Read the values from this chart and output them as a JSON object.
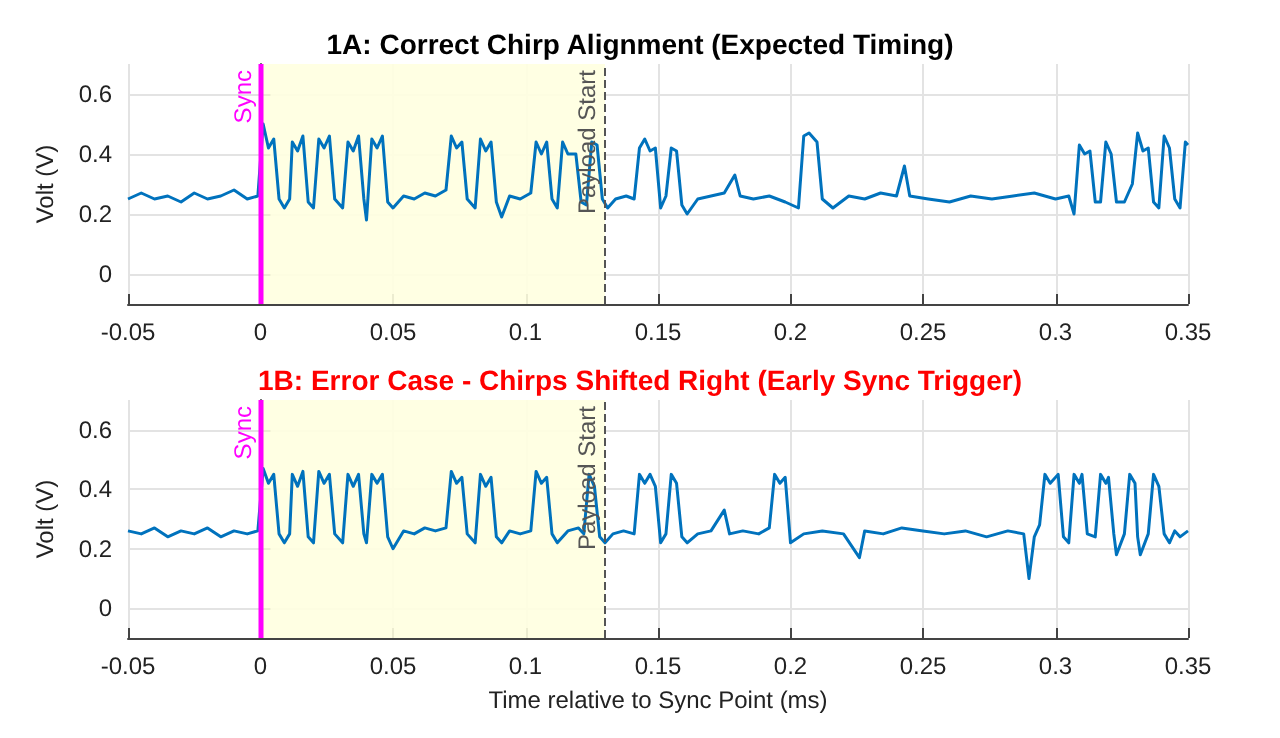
{
  "chart_data": [
    {
      "type": "line",
      "title": "1A: Correct Chirp Alignment (Expected Timing)",
      "ylabel": "Volt (V)",
      "x": [
        -0.05,
        -0.045,
        -0.04,
        -0.035,
        -0.03,
        -0.025,
        -0.02,
        -0.015,
        -0.01,
        -0.005,
        -0.001,
        0.001,
        0.003,
        0.005,
        0.007,
        0.009,
        0.011,
        0.012,
        0.014,
        0.016,
        0.018,
        0.02,
        0.022,
        0.024,
        0.026,
        0.028,
        0.031,
        0.033,
        0.035,
        0.037,
        0.039,
        0.04,
        0.042,
        0.044,
        0.046,
        0.048,
        0.05,
        0.054,
        0.058,
        0.062,
        0.066,
        0.07,
        0.072,
        0.074,
        0.076,
        0.078,
        0.081,
        0.083,
        0.085,
        0.087,
        0.089,
        0.091,
        0.094,
        0.098,
        0.102,
        0.104,
        0.106,
        0.108,
        0.11,
        0.112,
        0.114,
        0.116,
        0.119,
        0.121,
        0.123,
        0.125,
        0.127,
        0.129,
        0.131,
        0.134,
        0.138,
        0.141,
        0.143,
        0.145,
        0.147,
        0.149,
        0.151,
        0.153,
        0.155,
        0.157,
        0.159,
        0.161,
        0.165,
        0.17,
        0.175,
        0.179,
        0.181,
        0.186,
        0.192,
        0.198,
        0.203,
        0.205,
        0.207,
        0.21,
        0.212,
        0.216,
        0.222,
        0.228,
        0.234,
        0.24,
        0.243,
        0.245,
        0.252,
        0.26,
        0.268,
        0.276,
        0.284,
        0.292,
        0.3,
        0.305,
        0.307,
        0.309,
        0.311,
        0.313,
        0.315,
        0.317,
        0.319,
        0.321,
        0.323,
        0.326,
        0.329,
        0.331,
        0.333,
        0.335,
        0.337,
        0.339,
        0.341,
        0.343,
        0.345,
        0.347,
        0.349,
        0.35
      ],
      "series": [
        {
          "color": "#0072bd",
          "values": [
            0.25,
            0.27,
            0.25,
            0.26,
            0.24,
            0.27,
            0.25,
            0.26,
            0.28,
            0.25,
            0.26,
            0.5,
            0.42,
            0.45,
            0.25,
            0.22,
            0.25,
            0.44,
            0.41,
            0.46,
            0.24,
            0.22,
            0.45,
            0.42,
            0.46,
            0.25,
            0.22,
            0.44,
            0.41,
            0.46,
            0.25,
            0.18,
            0.45,
            0.42,
            0.46,
            0.24,
            0.22,
            0.26,
            0.25,
            0.27,
            0.26,
            0.28,
            0.46,
            0.42,
            0.44,
            0.25,
            0.22,
            0.45,
            0.41,
            0.44,
            0.24,
            0.19,
            0.26,
            0.25,
            0.27,
            0.44,
            0.4,
            0.44,
            0.25,
            0.22,
            0.44,
            0.4,
            0.4,
            0.24,
            0.23,
            0.44,
            0.43,
            0.25,
            0.22,
            0.25,
            0.26,
            0.25,
            0.42,
            0.45,
            0.41,
            0.42,
            0.22,
            0.26,
            0.42,
            0.41,
            0.23,
            0.2,
            0.25,
            0.26,
            0.27,
            0.33,
            0.26,
            0.25,
            0.26,
            0.24,
            0.22,
            0.46,
            0.47,
            0.44,
            0.25,
            0.22,
            0.26,
            0.25,
            0.27,
            0.26,
            0.36,
            0.26,
            0.25,
            0.24,
            0.26,
            0.25,
            0.26,
            0.27,
            0.25,
            0.26,
            0.2,
            0.43,
            0.4,
            0.41,
            0.24,
            0.24,
            0.44,
            0.4,
            0.24,
            0.24,
            0.3,
            0.47,
            0.41,
            0.42,
            0.24,
            0.22,
            0.46,
            0.42,
            0.25,
            0.22,
            0.44,
            0.43
          ]
        }
      ],
      "xlim": [
        -0.05,
        0.35
      ],
      "xticks": [
        -0.05,
        0,
        0.05,
        0.1,
        0.15,
        0.2,
        0.25,
        0.3,
        0.35
      ],
      "ylim": [
        -0.1,
        0.7
      ],
      "yticks": [
        0,
        0.2,
        0.4,
        0.6
      ],
      "grid": true,
      "ref_lines": [
        {
          "axis": "x",
          "value": 0,
          "label": "Sync",
          "color": "#ff00ff",
          "line_style": "solid"
        },
        {
          "axis": "x",
          "value": 0.13,
          "label": "Payload Start",
          "color": "#555555",
          "line_style": "dashed"
        }
      ],
      "bands": [
        {
          "axis": "x",
          "from": 0,
          "to": 0.13,
          "color": "#ffffe0"
        }
      ]
    },
    {
      "type": "line",
      "title": "1B: Error Case - Chirps Shifted Right (Early Sync Trigger)",
      "xlabel": "Time relative to Sync Point (ms)",
      "ylabel": "Volt (V)",
      "x": [
        -0.05,
        -0.045,
        -0.04,
        -0.035,
        -0.03,
        -0.025,
        -0.02,
        -0.015,
        -0.01,
        -0.005,
        -0.001,
        0.001,
        0.003,
        0.005,
        0.007,
        0.009,
        0.011,
        0.012,
        0.014,
        0.016,
        0.018,
        0.02,
        0.022,
        0.024,
        0.026,
        0.028,
        0.031,
        0.033,
        0.035,
        0.037,
        0.039,
        0.04,
        0.042,
        0.044,
        0.046,
        0.048,
        0.05,
        0.054,
        0.058,
        0.062,
        0.066,
        0.07,
        0.072,
        0.074,
        0.076,
        0.078,
        0.081,
        0.083,
        0.085,
        0.087,
        0.089,
        0.091,
        0.094,
        0.098,
        0.102,
        0.104,
        0.106,
        0.108,
        0.11,
        0.112,
        0.116,
        0.12,
        0.122,
        0.124,
        0.126,
        0.128,
        0.13,
        0.133,
        0.137,
        0.141,
        0.143,
        0.145,
        0.147,
        0.149,
        0.151,
        0.153,
        0.155,
        0.157,
        0.159,
        0.161,
        0.165,
        0.17,
        0.175,
        0.177,
        0.182,
        0.188,
        0.192,
        0.194,
        0.196,
        0.198,
        0.2,
        0.205,
        0.212,
        0.22,
        0.226,
        0.228,
        0.235,
        0.242,
        0.25,
        0.258,
        0.266,
        0.274,
        0.282,
        0.288,
        0.29,
        0.292,
        0.294,
        0.296,
        0.298,
        0.301,
        0.303,
        0.305,
        0.307,
        0.309,
        0.31,
        0.312,
        0.315,
        0.317,
        0.319,
        0.32,
        0.322,
        0.323,
        0.326,
        0.328,
        0.33,
        0.331,
        0.332,
        0.335,
        0.337,
        0.339,
        0.341,
        0.343,
        0.345,
        0.347,
        0.35
      ],
      "series": [
        {
          "color": "#0072bd",
          "values": [
            0.26,
            0.25,
            0.27,
            0.24,
            0.26,
            0.25,
            0.27,
            0.24,
            0.26,
            0.25,
            0.26,
            0.47,
            0.42,
            0.45,
            0.25,
            0.22,
            0.25,
            0.45,
            0.41,
            0.46,
            0.24,
            0.22,
            0.46,
            0.42,
            0.45,
            0.25,
            0.22,
            0.45,
            0.41,
            0.45,
            0.25,
            0.22,
            0.45,
            0.42,
            0.45,
            0.24,
            0.2,
            0.26,
            0.25,
            0.27,
            0.26,
            0.27,
            0.46,
            0.42,
            0.44,
            0.25,
            0.22,
            0.45,
            0.41,
            0.44,
            0.24,
            0.22,
            0.26,
            0.25,
            0.26,
            0.46,
            0.42,
            0.44,
            0.25,
            0.22,
            0.26,
            0.27,
            0.25,
            0.45,
            0.41,
            0.24,
            0.22,
            0.25,
            0.26,
            0.25,
            0.45,
            0.42,
            0.45,
            0.41,
            0.22,
            0.25,
            0.45,
            0.42,
            0.24,
            0.22,
            0.25,
            0.26,
            0.33,
            0.25,
            0.26,
            0.25,
            0.27,
            0.45,
            0.42,
            0.44,
            0.22,
            0.25,
            0.26,
            0.25,
            0.17,
            0.26,
            0.25,
            0.27,
            0.26,
            0.25,
            0.26,
            0.24,
            0.26,
            0.25,
            0.1,
            0.24,
            0.28,
            0.45,
            0.42,
            0.45,
            0.24,
            0.22,
            0.45,
            0.42,
            0.45,
            0.25,
            0.24,
            0.45,
            0.42,
            0.44,
            0.25,
            0.18,
            0.25,
            0.45,
            0.42,
            0.24,
            0.18,
            0.25,
            0.45,
            0.41,
            0.25,
            0.22,
            0.26,
            0.24,
            0.26
          ]
        }
      ],
      "xlim": [
        -0.05,
        0.35
      ],
      "xticks": [
        -0.05,
        0,
        0.05,
        0.1,
        0.15,
        0.2,
        0.25,
        0.3,
        0.35
      ],
      "ylim": [
        -0.1,
        0.7
      ],
      "yticks": [
        0,
        0.2,
        0.4,
        0.6
      ],
      "grid": true,
      "ref_lines": [
        {
          "axis": "x",
          "value": 0,
          "label": "Sync",
          "color": "#ff00ff",
          "line_style": "solid"
        },
        {
          "axis": "x",
          "value": 0.13,
          "label": "Payload Start",
          "color": "#555555",
          "line_style": "dashed"
        }
      ],
      "bands": [
        {
          "axis": "x",
          "from": 0,
          "to": 0.13,
          "color": "#ffffe0"
        }
      ]
    }
  ]
}
